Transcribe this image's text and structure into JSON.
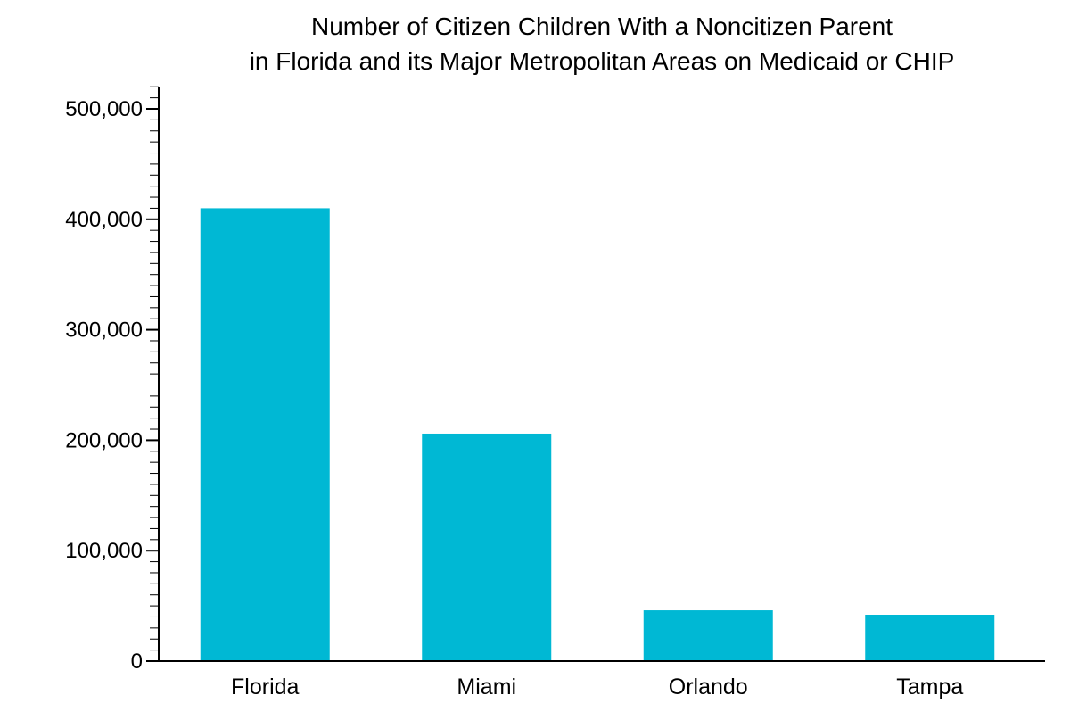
{
  "chart_data": {
    "type": "bar",
    "title": [
      "Number of Citizen Children With a Noncitizen Parent",
      "in Florida and its Major Metropolitan Areas on Medicaid or CHIP"
    ],
    "xlabel": "",
    "ylabel": "",
    "categories": [
      "Florida",
      "Miami",
      "Orlando",
      "Tampa"
    ],
    "values": [
      410000,
      206000,
      46000,
      42000
    ],
    "ylim": [
      0,
      520000
    ],
    "yticks": [
      0,
      100000,
      200000,
      300000,
      400000,
      500000
    ],
    "ytick_labels": [
      "0",
      "100,000",
      "200,000",
      "300,000",
      "400,000",
      "500,000"
    ],
    "minor_tick_step": 10000,
    "grid": false,
    "legend": "none",
    "bar_color": "#00b8d4"
  }
}
